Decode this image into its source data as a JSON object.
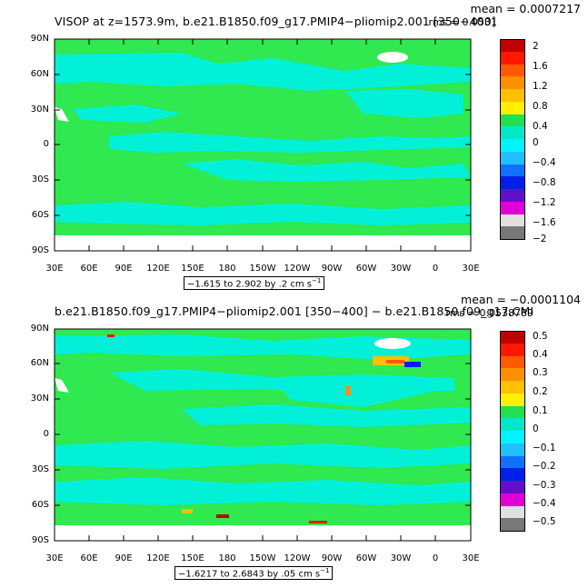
{
  "panel_top": {
    "title": "VISOP  at z=1573.9m, b.e21.B1850.f09_g17.PMIP4−pliomip2.001 [350−400]",
    "mean": "mean = 0.0007217",
    "rms": "rms = 0.0531",
    "range_label": "−1.615 to 2.902 by .2 cm s",
    "range_unit_exp": "−1",
    "legend_labels": [
      "2",
      "1.6",
      "1.2",
      "0.8",
      "0.4",
      "0",
      "−0.4",
      "−0.8",
      "−1.2",
      "−1.6",
      "−2"
    ]
  },
  "panel_bottom": {
    "title": "b.e21.B1850.f09_g17.PMIP4−pliomip2.001 [350−400] − b.e21.B1850.f09_g17.CMI",
    "mean": "mean = −0.0001104",
    "rms": "rms = 0.0538789",
    "range_label": "−1.6217 to 2.6843 by .05 cm s",
    "range_unit_exp": "−1",
    "legend_labels": [
      "0.5",
      "0.4",
      "0.3",
      "0.2",
      "0.1",
      "0",
      "−0.1",
      "−0.2",
      "−0.3",
      "−0.4",
      "−0.5"
    ]
  },
  "axes": {
    "y_labels": [
      "90N",
      "60N",
      "30N",
      "0",
      "30S",
      "60S",
      "90S"
    ],
    "x_labels": [
      "30E",
      "60E",
      "90E",
      "120E",
      "150E",
      "180",
      "150W",
      "120W",
      "90W",
      "60W",
      "30W",
      "0",
      "30E"
    ]
  },
  "legend_colors": [
    "#c00000",
    "#ff1800",
    "#ff5a00",
    "#ff9000",
    "#ffc000",
    "#fff000",
    "#20e050",
    "#00e8c8",
    "#00f4ff",
    "#20c0ff",
    "#1070ff",
    "#0020e8",
    "#6010c8",
    "#e000d8",
    "#e0e0e0",
    "#787878"
  ],
  "colors": {
    "land": "#30e850",
    "ocean_light": "#00f0e0",
    "ice": "#ffffff"
  }
}
